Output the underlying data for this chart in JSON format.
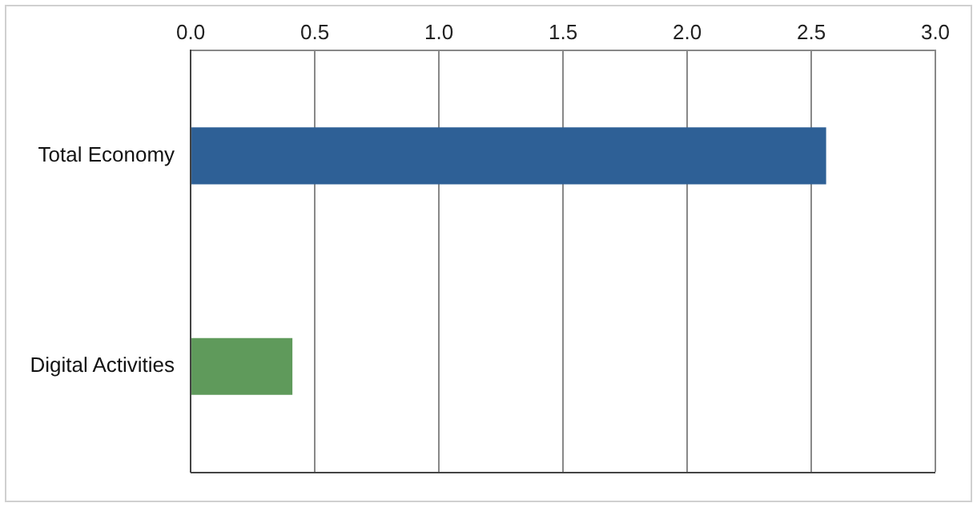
{
  "chart_data": {
    "type": "bar",
    "orientation": "horizontal",
    "categories": [
      "Total Economy",
      "Digital Activities"
    ],
    "values": [
      2.56,
      0.41
    ],
    "colors": [
      "#2e6096",
      "#5f9a5b"
    ],
    "xlim": [
      0,
      3
    ],
    "xticks": [
      {
        "value": 0,
        "label": "0.0"
      },
      {
        "value": 0.5,
        "label": "0.5"
      },
      {
        "value": 1,
        "label": "1.0"
      },
      {
        "value": 1.5,
        "label": "1.5"
      },
      {
        "value": 2,
        "label": "2.0"
      },
      {
        "value": 2.5,
        "label": "2.5"
      },
      {
        "value": 3,
        "label": "3.0"
      }
    ],
    "grid": "x",
    "legend": false
  }
}
